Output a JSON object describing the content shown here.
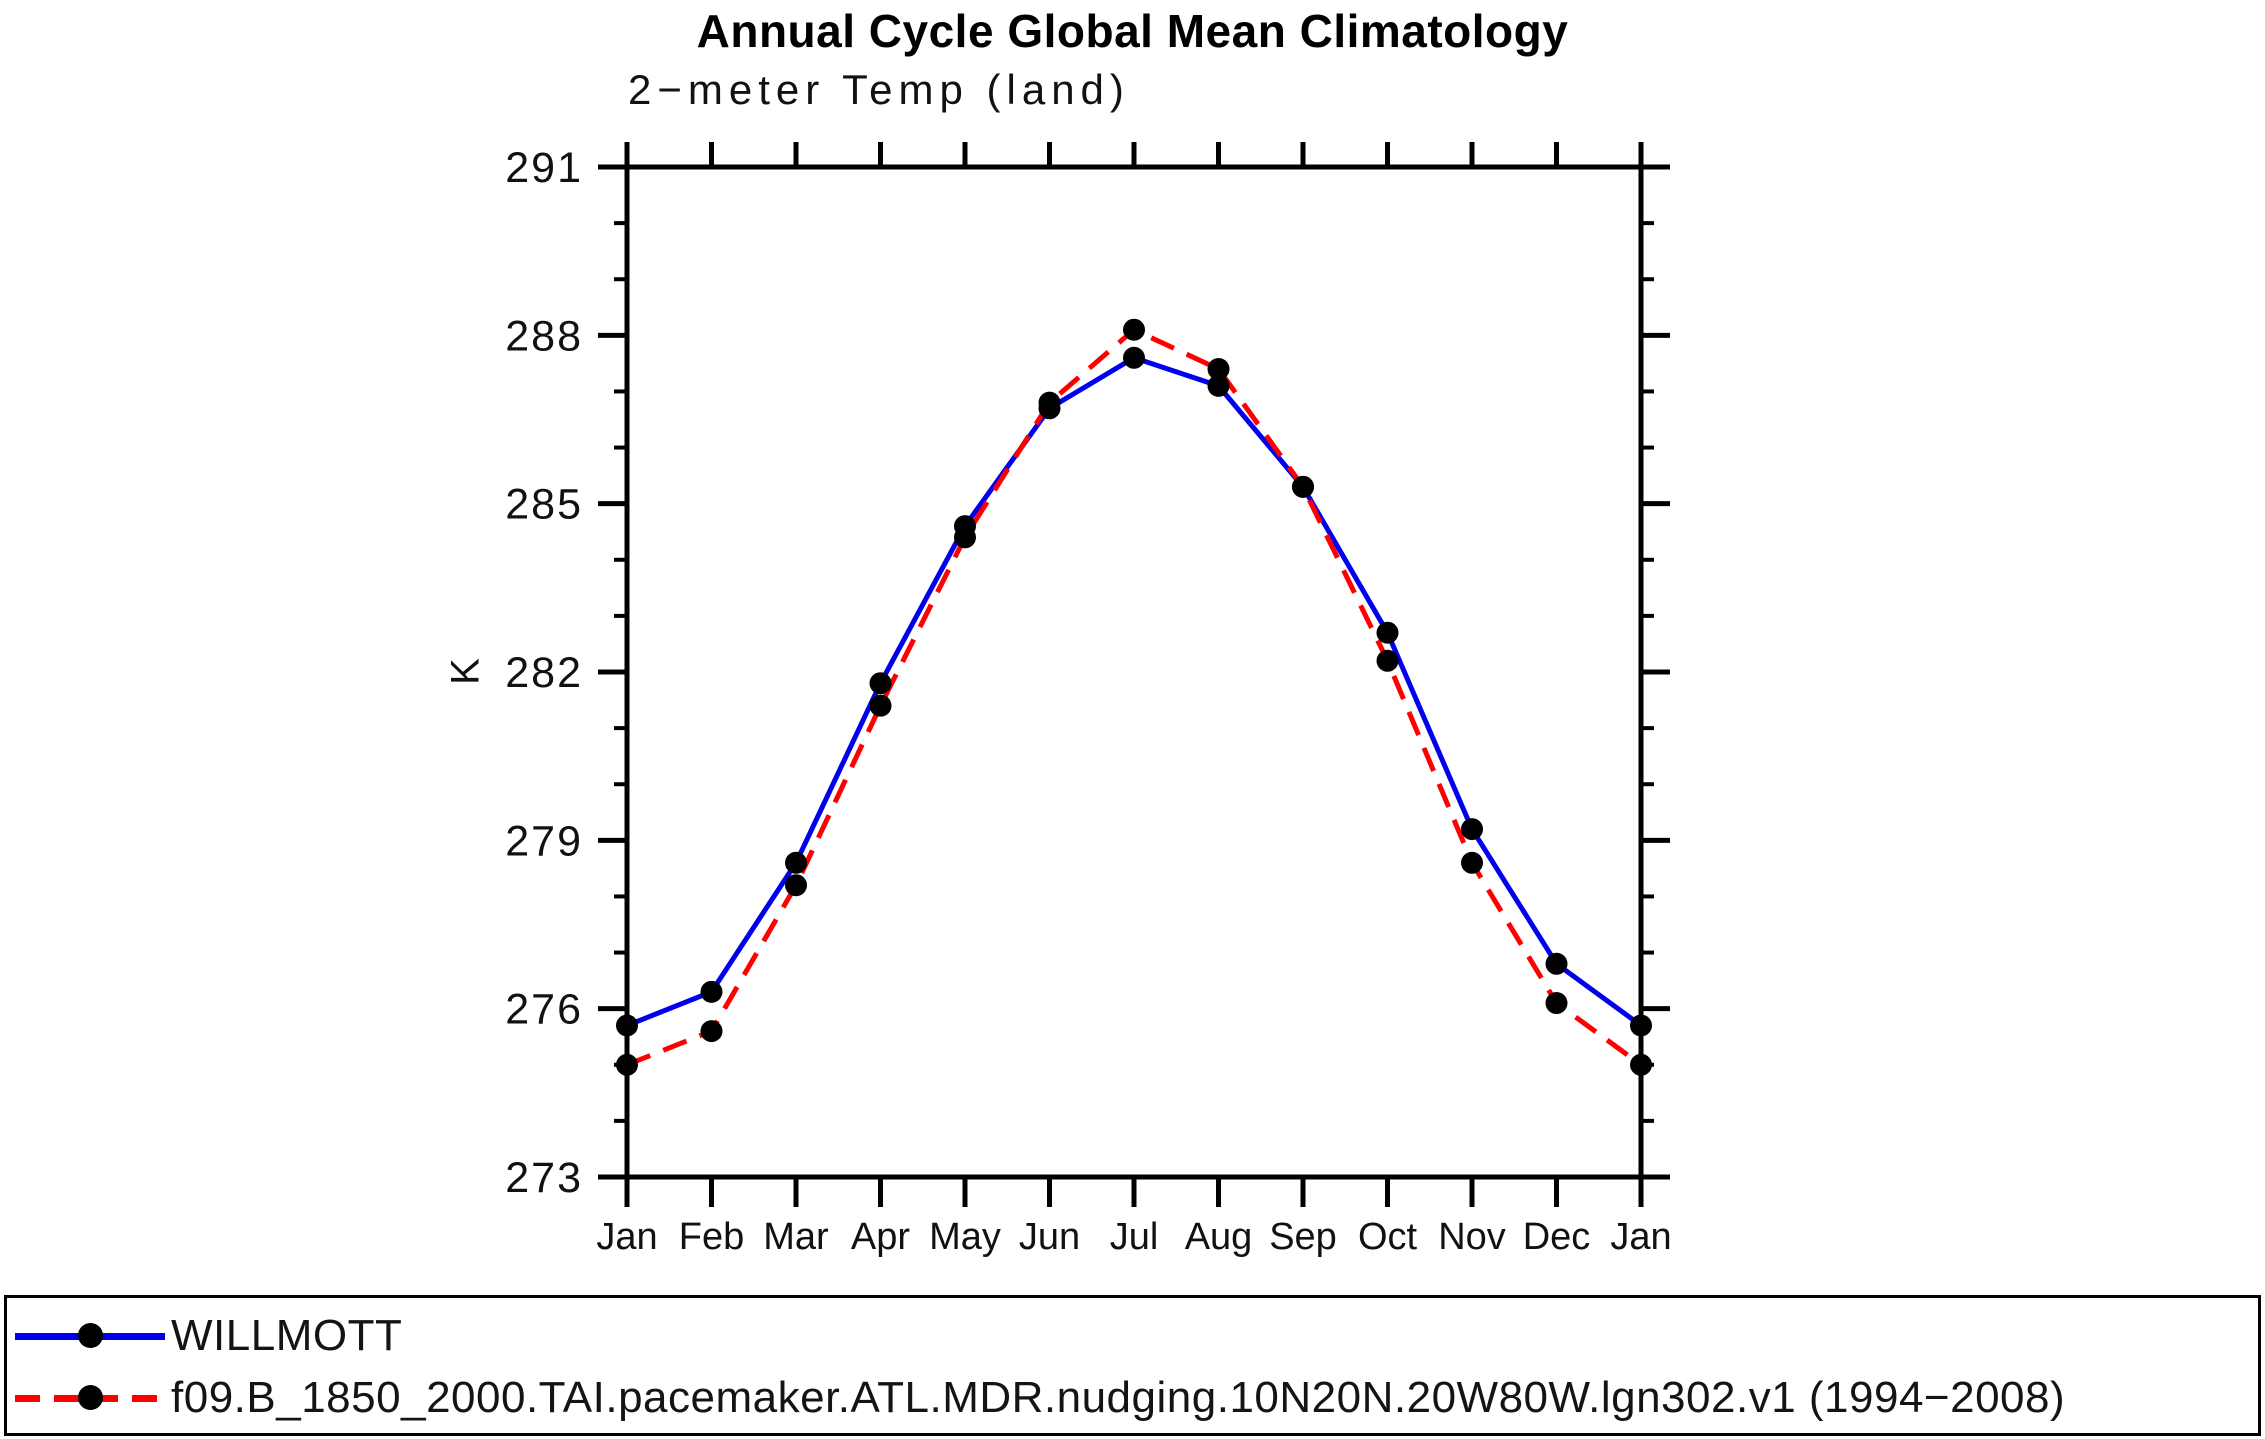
{
  "header": {
    "title": "Annual Cycle Global Mean Climatology",
    "subtitle": "2−meter Temp (land)"
  },
  "chart_data": {
    "type": "line",
    "title": "Annual Cycle Global Mean Climatology",
    "subtitle": "2−meter Temp (land)",
    "xlabel": "",
    "ylabel": "K",
    "ylim": [
      273,
      291
    ],
    "ytick_major": [
      273,
      276,
      279,
      282,
      285,
      288,
      291
    ],
    "ytick_minor_step": 1,
    "grid": false,
    "legend_position": "bottom-box",
    "categories": [
      "Jan",
      "Feb",
      "Mar",
      "Apr",
      "May",
      "Jun",
      "Jul",
      "Aug",
      "Sep",
      "Oct",
      "Nov",
      "Dec",
      "Jan"
    ],
    "series": [
      {
        "name": "WILLMOTT",
        "color": "#0000ee",
        "style": "solid",
        "marker": "circle",
        "marker_color": "#000000",
        "values": [
          275.7,
          276.3,
          278.6,
          281.8,
          284.6,
          286.7,
          287.6,
          287.1,
          285.3,
          282.7,
          279.2,
          276.8,
          275.7
        ]
      },
      {
        "name": "f09.B_1850_2000.TAI.pacemaker.ATL.MDR.nudging.10N20N.20W80W.lgn302.v1 (1994−2008)",
        "color": "#ff0000",
        "style": "dashed",
        "marker": "circle",
        "marker_color": "#000000",
        "values": [
          275.0,
          275.6,
          278.2,
          281.4,
          284.4,
          286.8,
          288.1,
          287.4,
          285.3,
          282.2,
          278.6,
          276.1,
          275.0
        ]
      }
    ]
  },
  "legend": {
    "entries": [
      {
        "label": "WILLMOTT",
        "line": "blue-solid",
        "marker": "black-dot"
      },
      {
        "label": "f09.B_1850_2000.TAI.pacemaker.ATL.MDR.nudging.10N20N.20W80W.lgn302.v1 (1994−2008)",
        "line": "red-dashed",
        "marker": "black-dot"
      }
    ]
  }
}
